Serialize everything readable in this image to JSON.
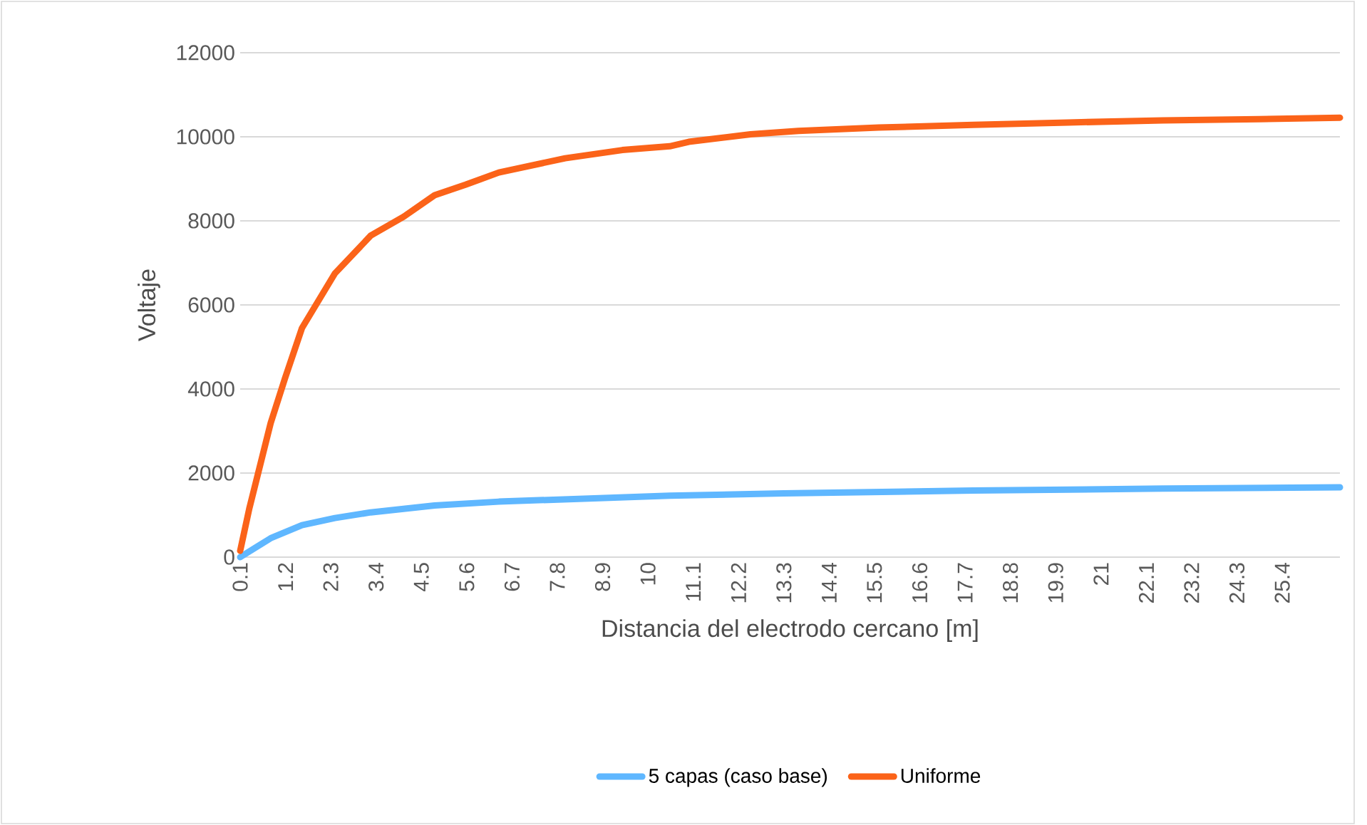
{
  "chart_data": {
    "type": "line",
    "xlabel": "Distancia del electrodo cercano [m]",
    "ylabel": "Voltaje",
    "xlim": [
      0.1,
      26.8
    ],
    "xticks": [
      0.1,
      1.2,
      2.3,
      3.4,
      4.5,
      5.6,
      6.7,
      7.8,
      8.9,
      10,
      11.1,
      12.2,
      13.3,
      14.4,
      15.5,
      16.6,
      17.7,
      18.8,
      19.9,
      21,
      22.1,
      23.2,
      24.3,
      25.4
    ],
    "ylim": [
      0,
      12000
    ],
    "yticks": [
      0,
      2000,
      4000,
      6000,
      8000,
      10000,
      12000
    ],
    "grid": "y",
    "legend": "bottom",
    "marker": "none",
    "line_style": "solid",
    "series": [
      {
        "name": "5 capas (caso base)",
        "color": "#5fb7ff",
        "x": [
          0.1,
          0.84,
          1.6,
          2.4,
          3.27,
          4.82,
          6.38,
          8.69,
          10.53,
          13.3,
          17.9,
          22.5,
          26.8
        ],
        "values": [
          0,
          450,
          760,
          930,
          1065,
          1230,
          1320,
          1400,
          1460,
          1515,
          1585,
          1630,
          1660
        ]
      },
      {
        "name": "Uniforme",
        "color": "#fb6319",
        "x": [
          0.1,
          0.32,
          0.84,
          1.19,
          1.6,
          2.4,
          3.27,
          4.07,
          4.82,
          5.57,
          6.38,
          7.99,
          9.38,
          10.53,
          10.99,
          12.49,
          13.65,
          15.6,
          17.9,
          20.2,
          22.5,
          24.83,
          26.8
        ],
        "values": [
          150,
          1150,
          3190,
          4260,
          5450,
          6750,
          7650,
          8100,
          8610,
          8860,
          9150,
          9490,
          9685,
          9775,
          9880,
          10060,
          10140,
          10220,
          10285,
          10340,
          10390,
          10420,
          10455
        ]
      }
    ]
  }
}
